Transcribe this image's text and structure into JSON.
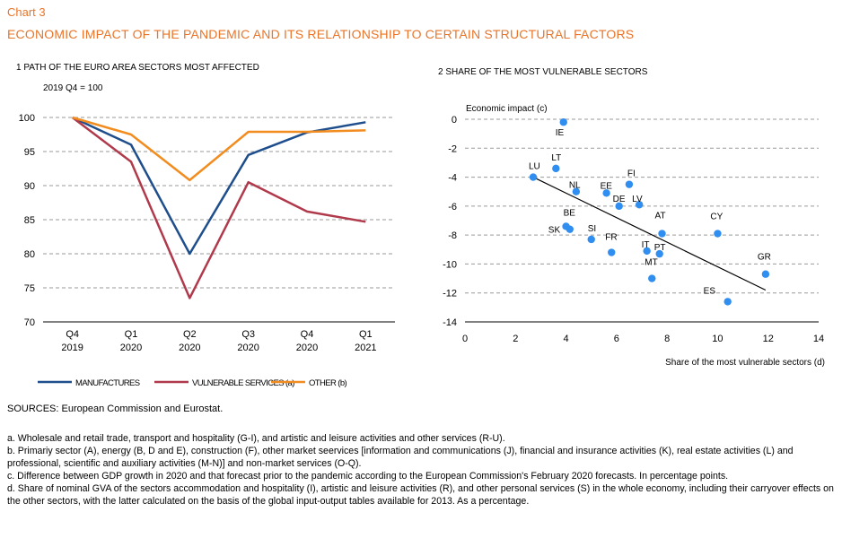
{
  "header": {
    "chart_number": "Chart 3",
    "title": "ECONOMIC IMPACT OF THE PANDEMIC AND ITS RELATIONSHIP TO CERTAIN STRUCTURAL FACTORS"
  },
  "chart_data": [
    {
      "type": "line",
      "title": "1 PATH OF THE EURO AREA SECTORS MOST AFFECTED",
      "subtitle": "2019 Q4 = 100",
      "categories": [
        [
          "Q4",
          "2019"
        ],
        [
          "Q1",
          "2020"
        ],
        [
          "Q2",
          "2020"
        ],
        [
          "Q3",
          "2020"
        ],
        [
          "Q4",
          "2020"
        ],
        [
          "Q1",
          "2021"
        ]
      ],
      "ylim": [
        70,
        100
      ],
      "yticks": [
        70,
        75,
        80,
        85,
        90,
        95,
        100
      ],
      "grid": true,
      "legend_position": "bottom",
      "series": [
        {
          "name": "MANUFACTURES",
          "color": "#1f4e8c",
          "values": [
            100,
            96,
            80,
            94.5,
            97.8,
            99.3
          ]
        },
        {
          "name": "VULNERABLE SERVICES (a)",
          "color": "#b03a4c",
          "values": [
            100,
            93.5,
            73.5,
            90.5,
            86.2,
            84.7
          ]
        },
        {
          "name": "OTHER (b)",
          "color": "#f28c1e",
          "values": [
            100,
            97.5,
            90.8,
            97.9,
            97.9,
            98.1
          ]
        }
      ]
    },
    {
      "type": "scatter",
      "title": "2 SHARE OF THE MOST VULNERABLE SECTORS",
      "ylabel": "Economic impact (c)",
      "xlabel": "Share of the most vulnerable sectors (d)",
      "xlim": [
        0,
        14
      ],
      "xticks": [
        0,
        2,
        4,
        6,
        8,
        10,
        12,
        14
      ],
      "ylim": [
        -14,
        0
      ],
      "yticks": [
        0,
        -2,
        -4,
        -6,
        -8,
        -10,
        -12,
        -14
      ],
      "grid": true,
      "point_color": "#2f8ef0",
      "points": [
        {
          "label": "IE",
          "x": 3.9,
          "y": -0.2
        },
        {
          "label": "LT",
          "x": 3.6,
          "y": -3.4
        },
        {
          "label": "LU",
          "x": 2.7,
          "y": -4.0
        },
        {
          "label": "NL",
          "x": 4.4,
          "y": -5.0
        },
        {
          "label": "EE",
          "x": 5.6,
          "y": -5.1
        },
        {
          "label": "FI",
          "x": 6.5,
          "y": -4.5
        },
        {
          "label": "DE",
          "x": 6.1,
          "y": -6.0
        },
        {
          "label": "LV",
          "x": 6.9,
          "y": -5.9
        },
        {
          "label": "BE",
          "x": 4.0,
          "y": -7.4
        },
        {
          "label": "SK",
          "x": 4.15,
          "y": -7.6
        },
        {
          "label": "SI",
          "x": 5.0,
          "y": -8.3
        },
        {
          "label": "FR",
          "x": 5.8,
          "y": -9.2
        },
        {
          "label": "IT",
          "x": 7.2,
          "y": -9.1
        },
        {
          "label": "PT",
          "x": 7.7,
          "y": -9.3
        },
        {
          "label": "AT",
          "x": 7.8,
          "y": -7.9
        },
        {
          "label": "MT",
          "x": 7.4,
          "y": -11.0
        },
        {
          "label": "CY",
          "x": 10.0,
          "y": -7.9
        },
        {
          "label": "GR",
          "x": 11.9,
          "y": -10.7
        },
        {
          "label": "ES",
          "x": 10.4,
          "y": -12.6
        }
      ],
      "trendline": {
        "x": [
          2.7,
          11.9
        ],
        "y": [
          -4.0,
          -11.8
        ]
      }
    }
  ],
  "sources": "SOURCES: European Commission and Eurostat.",
  "notes": [
    "a. Wholesale and retail trade, transport and hospitality (G-I), and artistic and leisure activities and other services (R-U).",
    "b. Primariy sector (A), energy (B, D and E), construction (F), other market seervices [information and communications (J), financial and insurance activities (K), real estate activities (L) and professional, scientific and auxiliary activities (M-N)] and non-market services (O-Q).",
    "c. Difference between GDP growth in 2020 and that forecast prior to the pandemic according to the European Commission's February 2020 forecasts. In percentage points.",
    "d. Share of nominal GVA of the sectors accommodation and hospitality (I), artistic and leisure activities (R), and other personal services (S) in the whole economy, including their carryover effects on the other sectors, with the latter calculated on the basis of the global input-output tables available for 2013. As a percentage."
  ]
}
